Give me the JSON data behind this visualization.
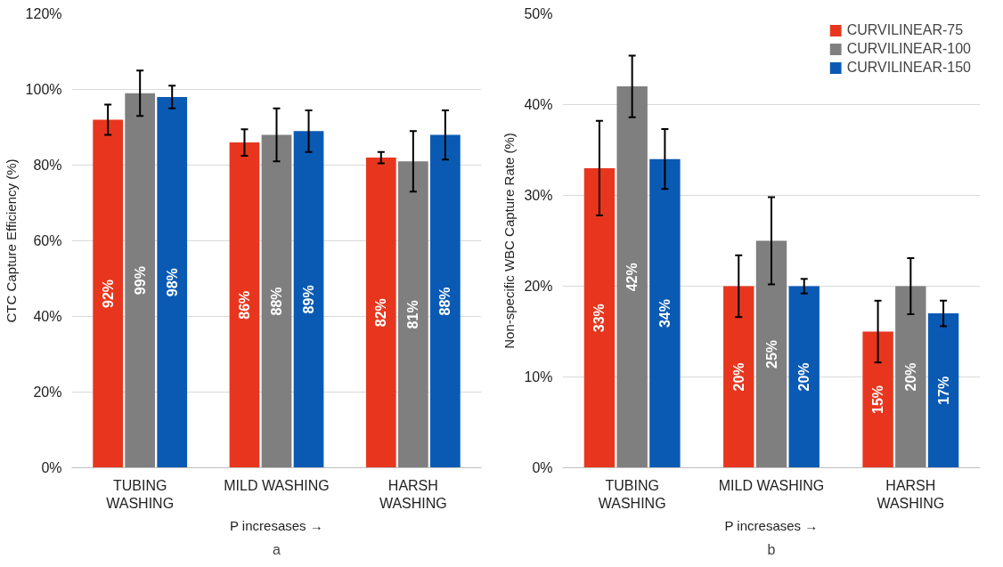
{
  "chart_data": [
    {
      "type": "bar",
      "categories": [
        "TUBING\nWASHING",
        "MILD WASHING",
        "HARSH\nWASHING"
      ],
      "xlabel": "P incresases →",
      "ylabel": "CTC Capture Efficiency (%)",
      "annotations": [
        "a"
      ],
      "ylim": [
        0,
        120
      ],
      "yticks": [
        {
          "value": 0,
          "label": "0%"
        },
        {
          "value": 20,
          "label": "20%"
        },
        {
          "value": 40,
          "label": "40%"
        },
        {
          "value": 60,
          "label": "60%"
        },
        {
          "value": 80,
          "label": "80%"
        },
        {
          "value": 100,
          "label": "100%"
        },
        {
          "value": 120,
          "label": "120%"
        }
      ],
      "grid": "y",
      "legend": false,
      "series": [
        {
          "color": "#e8361e",
          "values": [
            92,
            86,
            82
          ],
          "errors": [
            4,
            3.5,
            1.5
          ],
          "value_labels": [
            "92%",
            "86%",
            "82%"
          ]
        },
        {
          "color": "#7f7f7f",
          "values": [
            99,
            88,
            81
          ],
          "errors": [
            6,
            7,
            8
          ],
          "value_labels": [
            "99%",
            "88%",
            "81%"
          ]
        },
        {
          "color": "#0a5ab4",
          "values": [
            98,
            89,
            88
          ],
          "errors": [
            3,
            5.5,
            6.5
          ],
          "value_labels": [
            "98%",
            "89%",
            "88%"
          ]
        }
      ]
    },
    {
      "type": "bar",
      "categories": [
        "TUBING\nWASHING",
        "MILD WASHING",
        "HARSH\nWASHING"
      ],
      "xlabel": "P incresases →",
      "ylabel": "Non-specific WBC Capture Rate (%)",
      "annotations": [
        "b"
      ],
      "ylim": [
        0,
        50
      ],
      "yticks": [
        {
          "value": 0,
          "label": "0%"
        },
        {
          "value": 10,
          "label": "10%"
        },
        {
          "value": 20,
          "label": "20%"
        },
        {
          "value": 30,
          "label": "30%"
        },
        {
          "value": 40,
          "label": "40%"
        },
        {
          "value": 50,
          "label": "50%"
        }
      ],
      "grid": "y",
      "legend": "top right",
      "series": [
        {
          "name": "CURVILINEAR-75",
          "color": "#e8361e",
          "values": [
            33,
            20,
            15
          ],
          "errors": [
            5.2,
            3.4,
            3.4
          ],
          "value_labels": [
            "33%",
            "20%",
            "15%"
          ]
        },
        {
          "name": "CURVILINEAR-100",
          "color": "#7f7f7f",
          "values": [
            42,
            25,
            20
          ],
          "errors": [
            3.4,
            4.8,
            3.1
          ],
          "value_labels": [
            "42%",
            "25%",
            "20%"
          ]
        },
        {
          "name": "CURVILINEAR-150",
          "color": "#0a5ab4",
          "values": [
            34,
            20,
            17
          ],
          "errors": [
            3.3,
            0.8,
            1.4
          ],
          "value_labels": [
            "34%",
            "20%",
            "17%"
          ]
        }
      ]
    }
  ]
}
